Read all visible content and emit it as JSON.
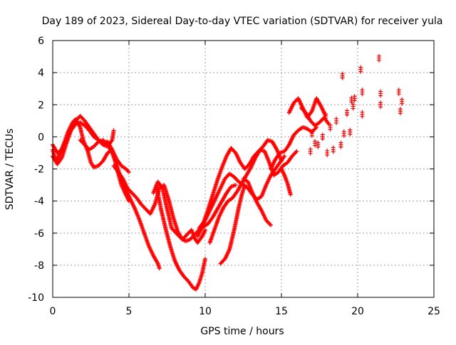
{
  "chart_data": {
    "type": "scatter",
    "title": "Day 189 of 2023, Sidereal Day-to-day VTEC variation (SDTVAR) for receiver yula",
    "xlabel": "GPS time / hours",
    "ylabel": "SDTVAR / TECUs",
    "xlim": [
      0,
      25
    ],
    "ylim": [
      -10,
      6
    ],
    "xticks": [
      0,
      5,
      10,
      15,
      20,
      25
    ],
    "yticks": [
      -10,
      -8,
      -6,
      -4,
      -2,
      0,
      2,
      4,
      6
    ],
    "grid": true,
    "marker": "+",
    "color": "#ff0000",
    "series": [
      {
        "name": "trace-1",
        "x": [
          0.0,
          0.2,
          0.4,
          0.7,
          1.0,
          1.3,
          1.5,
          1.8,
          2.0,
          2.3,
          2.5,
          2.7,
          3.0,
          3.3,
          3.6,
          3.9,
          4.1,
          4.3,
          4.5,
          4.8,
          5.0
        ],
        "y": [
          -0.8,
          -1.5,
          -1.2,
          -0.5,
          0.3,
          0.9,
          1.1,
          0.6,
          -0.2,
          -0.9,
          -1.6,
          -1.9,
          -1.8,
          -1.5,
          -1.0,
          -0.8,
          -1.5,
          -2.3,
          -3.0,
          -3.6,
          -4.0
        ]
      },
      {
        "name": "trace-2",
        "x": [
          0.0,
          0.3,
          0.6,
          0.9,
          1.2,
          1.5,
          1.8,
          2.1,
          2.4,
          2.7,
          3.0,
          3.3,
          3.6,
          3.9,
          4.2,
          4.5,
          4.8,
          5.0
        ],
        "y": [
          -0.5,
          -1.0,
          -0.8,
          -0.2,
          0.5,
          1.0,
          1.3,
          1.0,
          0.6,
          0.2,
          -0.2,
          -0.4,
          -0.3,
          -0.8,
          -1.4,
          -1.8,
          -2.0,
          -2.2
        ]
      },
      {
        "name": "trace-3",
        "x": [
          0.0,
          0.3,
          0.6,
          0.9,
          1.2,
          1.5,
          1.8,
          2.1,
          2.4,
          2.7,
          3.0,
          3.3,
          3.6,
          3.9,
          4.0
        ],
        "y": [
          -1.2,
          -1.7,
          -1.3,
          -0.4,
          0.4,
          0.8,
          0.9,
          0.7,
          0.4,
          0.0,
          -0.2,
          -0.5,
          -0.6,
          -0.2,
          0.4
        ]
      },
      {
        "name": "trace-4",
        "x": [
          1.8,
          2.1,
          2.4,
          2.7,
          3.0,
          3.3,
          3.6,
          3.9,
          4.2,
          4.5,
          4.8,
          5.1,
          5.4,
          5.7,
          6.0,
          6.3,
          6.6,
          6.9,
          7.0
        ],
        "y": [
          -0.2,
          -0.5,
          -0.8,
          -0.6,
          -0.3,
          -0.2,
          -0.5,
          -1.0,
          -1.8,
          -2.6,
          -3.3,
          -3.9,
          -4.5,
          -5.2,
          -6.0,
          -6.8,
          -7.4,
          -7.9,
          -8.2
        ]
      },
      {
        "name": "trace-5",
        "x": [
          4.0,
          4.3,
          4.6,
          4.9,
          5.2,
          5.5,
          5.8,
          6.1,
          6.4,
          6.7,
          7.0,
          7.3,
          7.6,
          7.9,
          8.2,
          8.5,
          8.8,
          9.1,
          9.3,
          9.5,
          9.8,
          10.0
        ],
        "y": [
          -1.8,
          -2.2,
          -2.6,
          -3.2,
          -3.5,
          -3.8,
          -4.2,
          -4.5,
          -4.8,
          -4.2,
          -3.2,
          -3.0,
          -3.9,
          -5.0,
          -5.9,
          -6.4,
          -6.1,
          -5.8,
          -6.3,
          -6.6,
          -6.2,
          -5.8
        ]
      },
      {
        "name": "trace-6",
        "x": [
          6.6,
          6.9,
          7.2,
          7.5,
          7.8,
          8.1,
          8.4,
          8.7,
          9.0,
          9.3,
          9.6,
          9.9,
          10.2,
          10.5,
          10.8,
          11.1,
          11.4,
          11.7,
          12.0
        ],
        "y": [
          -3.5,
          -2.8,
          -3.2,
          -4.5,
          -5.7,
          -6.0,
          -6.3,
          -6.5,
          -6.4,
          -6.1,
          -5.8,
          -5.6,
          -5.4,
          -5.0,
          -4.5,
          -4.0,
          -3.5,
          -3.1,
          -3.0
        ]
      },
      {
        "name": "trace-7",
        "x": [
          6.8,
          7.1,
          7.4,
          7.7,
          8.0,
          8.3,
          8.6,
          8.9,
          9.2,
          9.4,
          9.6,
          9.8,
          10.0
        ],
        "y": [
          -3.0,
          -4.5,
          -5.7,
          -6.8,
          -7.7,
          -8.3,
          -8.7,
          -9.0,
          -9.4,
          -9.5,
          -9.1,
          -8.5,
          -7.6
        ]
      },
      {
        "name": "trace-8",
        "x": [
          9.5,
          9.8,
          10.1,
          10.4,
          10.7,
          11.0,
          11.3,
          11.6,
          11.9,
          12.2,
          12.5,
          12.8,
          13.1,
          13.4,
          13.7,
          14.0,
          14.3,
          14.6,
          14.9,
          15.2
        ],
        "y": [
          -6.2,
          -5.6,
          -5.0,
          -4.4,
          -3.8,
          -3.2,
          -2.6,
          -2.3,
          -2.5,
          -2.8,
          -3.0,
          -3.2,
          -3.6,
          -3.9,
          -3.7,
          -3.0,
          -2.4,
          -2.0,
          -1.6,
          -1.2
        ]
      },
      {
        "name": "trace-9",
        "x": [
          9.6,
          9.9,
          10.2,
          10.5,
          10.8,
          11.1,
          11.4,
          11.7,
          12.0,
          12.3,
          12.6,
          12.9,
          13.2,
          13.5,
          13.8,
          14.1,
          14.4,
          14.7,
          15.0
        ],
        "y": [
          -5.7,
          -5.3,
          -4.5,
          -3.6,
          -2.7,
          -1.9,
          -1.2,
          -0.7,
          -1.0,
          -1.6,
          -2.0,
          -1.7,
          -1.2,
          -0.9,
          -0.6,
          -0.2,
          -0.3,
          -0.8,
          -1.5
        ]
      },
      {
        "name": "trace-10",
        "x": [
          10.3,
          10.6,
          10.9,
          11.2,
          11.5,
          11.8,
          12.1,
          12.4,
          12.7,
          13.0,
          13.3,
          13.6,
          13.9,
          14.2,
          14.5,
          14.8,
          15.1,
          15.4,
          15.7,
          16.0
        ],
        "y": [
          -6.6,
          -5.8,
          -5.0,
          -4.4,
          -4.0,
          -3.8,
          -3.4,
          -2.9,
          -2.4,
          -1.9,
          -1.3,
          -0.8,
          -0.9,
          -1.6,
          -2.4,
          -2.2,
          -1.8,
          -1.6,
          -1.2,
          -0.9
        ]
      },
      {
        "name": "trace-11",
        "x": [
          11.0,
          11.3,
          11.6,
          11.9,
          12.2,
          12.4,
          12.6
        ],
        "y": [
          -7.9,
          -7.6,
          -7.0,
          -5.8,
          -4.4,
          -3.6,
          -3.0
        ]
      },
      {
        "name": "trace-12",
        "x": [
          12.5,
          12.8,
          13.1,
          13.4,
          13.7,
          14.0,
          14.3
        ],
        "y": [
          -2.6,
          -2.8,
          -3.5,
          -4.1,
          -4.6,
          -5.2,
          -5.5
        ]
      },
      {
        "name": "trace-13",
        "x": [
          14.3,
          14.6,
          14.9,
          15.2,
          15.5,
          15.8,
          16.1,
          16.4,
          16.7,
          17.0,
          17.3
        ],
        "y": [
          -2.0,
          -1.4,
          -1.0,
          -0.9,
          -0.5,
          0.1,
          0.4,
          0.6,
          0.5,
          0.3,
          0.6
        ]
      },
      {
        "name": "trace-14",
        "x": [
          15.0,
          15.2,
          15.4,
          15.6
        ],
        "y": [
          -2.0,
          -2.4,
          -2.9,
          -3.6
        ]
      },
      {
        "name": "trace-15",
        "x": [
          15.5,
          15.8,
          16.1,
          16.4,
          16.7,
          17.0,
          17.3,
          17.6,
          17.9
        ],
        "y": [
          1.5,
          2.1,
          2.4,
          1.8,
          1.2,
          1.6,
          2.4,
          1.9,
          1.3
        ]
      },
      {
        "name": "trace-16",
        "x": [
          16.3,
          16.6,
          16.9,
          17.2,
          17.5,
          17.8,
          18.1
        ],
        "y": [
          1.8,
          1.5,
          1.0,
          0.7,
          0.9,
          1.2,
          0.8
        ]
      },
      {
        "name": "scattered",
        "x": [
          16.9,
          17.0,
          17.2,
          17.4,
          17.7,
          17.9,
          18.0,
          18.2,
          18.4,
          18.6,
          18.9,
          19.0,
          19.1,
          19.3,
          19.5,
          19.6,
          19.7,
          19.8,
          20.2,
          20.3,
          20.3,
          21.4,
          21.5,
          21.5,
          22.7,
          22.8,
          22.9
        ],
        "y": [
          -0.9,
          0.2,
          -0.4,
          -0.5,
          0.0,
          1.3,
          -1.0,
          0.6,
          -0.8,
          1.0,
          -0.5,
          3.8,
          0.2,
          1.5,
          0.3,
          2.3,
          1.9,
          2.4,
          4.2,
          2.8,
          1.4,
          4.9,
          2.7,
          2.0,
          2.8,
          1.6,
          2.2
        ]
      }
    ]
  }
}
